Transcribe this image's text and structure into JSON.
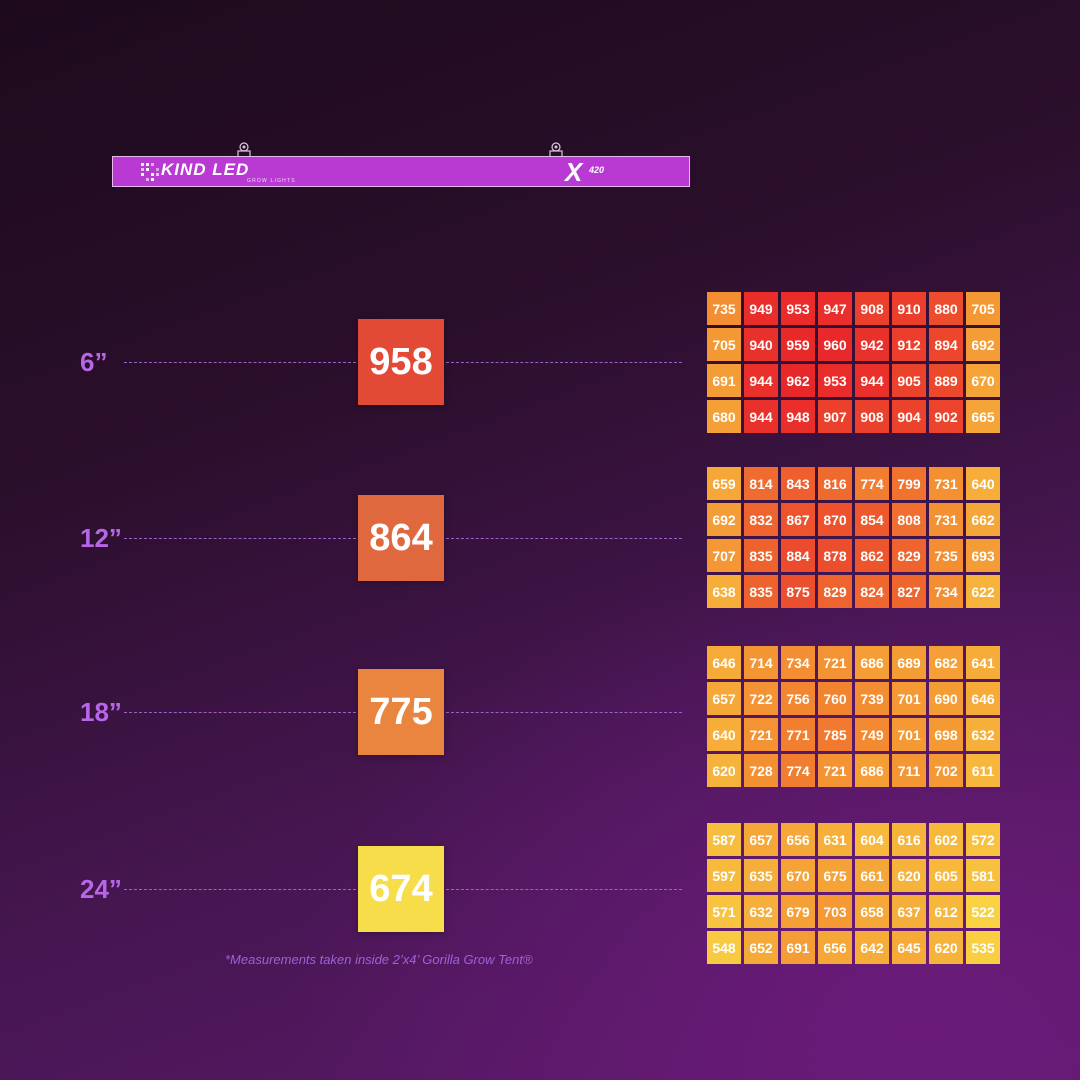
{
  "fixture": {
    "brand": "KIND LED",
    "subbrand": "GROW LIGHTS",
    "model_letter": "X",
    "model_number": "420",
    "color": "#b93ad3"
  },
  "footnote": "*Measurements taken inside 2’x4’ Gorilla Grow Tent®",
  "chart_data": {
    "type": "heatmap",
    "title": "",
    "unit": "",
    "color_scale": {
      "min_color": "#f9d343",
      "max_color": "#e8262a",
      "min": 520,
      "max": 965
    },
    "rows": [
      {
        "height": "6”",
        "average": 958,
        "grid": [
          [
            735,
            949,
            953,
            947,
            908,
            910,
            880,
            705
          ],
          [
            705,
            940,
            959,
            960,
            942,
            912,
            894,
            692
          ],
          [
            691,
            944,
            962,
            953,
            944,
            905,
            889,
            670
          ],
          [
            680,
            944,
            948,
            907,
            908,
            904,
            902,
            665
          ]
        ]
      },
      {
        "height": "12”",
        "average": 864,
        "grid": [
          [
            659,
            814,
            843,
            816,
            774,
            799,
            731,
            640
          ],
          [
            692,
            832,
            867,
            870,
            854,
            808,
            731,
            662
          ],
          [
            707,
            835,
            884,
            878,
            862,
            829,
            735,
            693
          ],
          [
            638,
            835,
            875,
            829,
            824,
            827,
            734,
            622
          ]
        ]
      },
      {
        "height": "18”",
        "average": 775,
        "grid": [
          [
            646,
            714,
            734,
            721,
            686,
            689,
            682,
            641
          ],
          [
            657,
            722,
            756,
            760,
            739,
            701,
            690,
            646
          ],
          [
            640,
            721,
            771,
            785,
            749,
            701,
            698,
            632
          ],
          [
            620,
            728,
            774,
            721,
            686,
            711,
            702,
            611
          ]
        ]
      },
      {
        "height": "24”",
        "average": 674,
        "grid": [
          [
            587,
            657,
            656,
            631,
            604,
            616,
            602,
            572
          ],
          [
            597,
            635,
            670,
            675,
            661,
            620,
            605,
            581
          ],
          [
            571,
            632,
            679,
            703,
            658,
            637,
            612,
            522
          ],
          [
            548,
            652,
            691,
            656,
            642,
            645,
            620,
            535
          ]
        ]
      }
    ],
    "average_box_colors": [
      "#e24a35",
      "#e0683f",
      "#ea8540",
      "#f8dd4b"
    ]
  }
}
